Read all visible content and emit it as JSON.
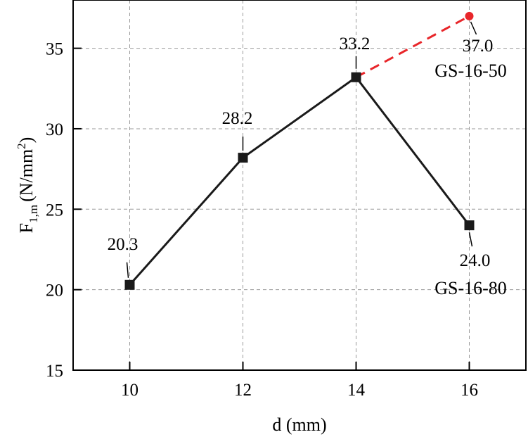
{
  "chart_data": {
    "type": "line",
    "xlabel": "d (mm)",
    "ylabel": {
      "main": "F",
      "subscript": "1,m",
      "unit_prefix": "(N/mm",
      "unit_superscript": "2",
      "unit_suffix": ")"
    },
    "xlim": [
      9,
      17
    ],
    "ylim": [
      15,
      38
    ],
    "xticks": [
      10,
      12,
      14,
      16
    ],
    "yticks": [
      15,
      20,
      25,
      30,
      35
    ],
    "grid": true,
    "series": [
      {
        "style": "solid",
        "color": "#1a1a1a",
        "marker": "square",
        "points": [
          {
            "x": 10,
            "y": 20.3,
            "label": "20.3"
          },
          {
            "x": 12,
            "y": 28.2,
            "label": "28.2"
          },
          {
            "x": 14,
            "y": 33.2,
            "label": "33.2"
          },
          {
            "x": 16,
            "y": 24.0,
            "label": "24.0"
          }
        ]
      },
      {
        "style": "dashed",
        "color": "#e8262a",
        "marker": "circle",
        "points": [
          {
            "x": 14,
            "y": 33.2,
            "label": ""
          },
          {
            "x": 16,
            "y": 37.0,
            "label": "37.0"
          }
        ]
      }
    ],
    "annotations": [
      {
        "x": 16,
        "y": 37.0,
        "text": "GS-16-50"
      },
      {
        "x": 16,
        "y": 24.0,
        "text": "GS-16-80"
      }
    ]
  }
}
